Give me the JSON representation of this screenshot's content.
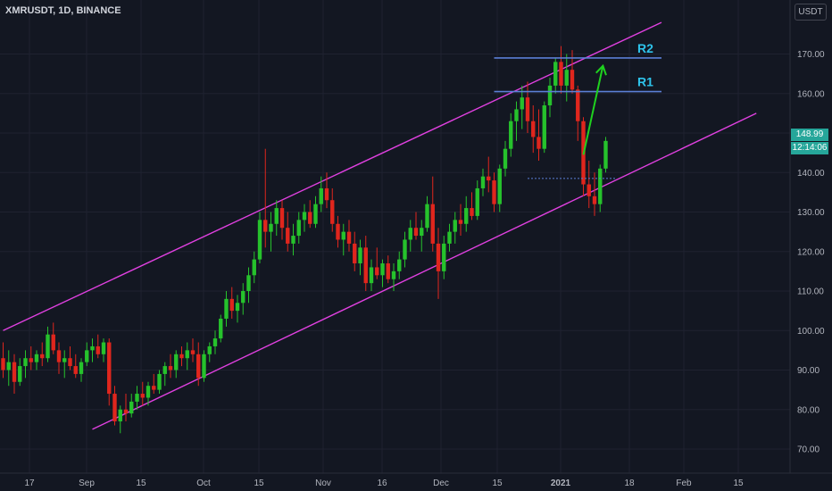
{
  "header": {
    "symbol": "XMRUSDT, 1D, BINANCE",
    "currency_button": "USDT"
  },
  "last_price": "148.99",
  "countdown": "12:14:06",
  "colors": {
    "background": "#131722",
    "grid": "#1f2230",
    "up": "#26c22c",
    "down": "#e0261d",
    "channel": "#e040e0",
    "resistance": "#5b7fd6",
    "annotation_text": "#2ec4ec",
    "arrow": "#1fd11f",
    "axis_text": "#b2b5be",
    "price_tag": "#26a69a"
  },
  "chart_data": {
    "type": "candlestick",
    "y_scale": "linear",
    "ylim": [
      66,
      177
    ],
    "y_ticks": [
      "70.00",
      "80.00",
      "90.00",
      "100.00",
      "110.00",
      "120.00",
      "130.00",
      "140.00",
      "150.00",
      "160.00",
      "170.00"
    ],
    "x_ticks": [
      "17",
      "Sep",
      "15",
      "Oct",
      "15",
      "Nov",
      "16",
      "Dec",
      "15",
      "2021",
      "18",
      "Feb",
      "15"
    ],
    "grid": true,
    "candles": [
      [
        93,
        97,
        88,
        90
      ],
      [
        90,
        95,
        86,
        92
      ],
      [
        92,
        94,
        84,
        87
      ],
      [
        87,
        93,
        86,
        91
      ],
      [
        91,
        95,
        88,
        93
      ],
      [
        93,
        96,
        90,
        92
      ],
      [
        92,
        95,
        90,
        94
      ],
      [
        94,
        97,
        91,
        93
      ],
      [
        93,
        101,
        92,
        99
      ],
      [
        99,
        102,
        94,
        95
      ],
      [
        95,
        97,
        89,
        92
      ],
      [
        92,
        95,
        88,
        93
      ],
      [
        93,
        96,
        90,
        91
      ],
      [
        91,
        94,
        88,
        89
      ],
      [
        89,
        93,
        87,
        92
      ],
      [
        92,
        97,
        91,
        95
      ],
      [
        95,
        98,
        92,
        96
      ],
      [
        96,
        99,
        93,
        94
      ],
      [
        94,
        98,
        92,
        97
      ],
      [
        97,
        98,
        81,
        84
      ],
      [
        84,
        86,
        76,
        77
      ],
      [
        77,
        81,
        74,
        80
      ],
      [
        80,
        84,
        77,
        79
      ],
      [
        79,
        84,
        78,
        82
      ],
      [
        82,
        86,
        80,
        84
      ],
      [
        84,
        87,
        81,
        83
      ],
      [
        83,
        87,
        81,
        86
      ],
      [
        86,
        89,
        84,
        85
      ],
      [
        85,
        90,
        84,
        89
      ],
      [
        89,
        92,
        86,
        91
      ],
      [
        91,
        94,
        88,
        90
      ],
      [
        90,
        95,
        88,
        94
      ],
      [
        94,
        96,
        91,
        93
      ],
      [
        93,
        97,
        90,
        95
      ],
      [
        95,
        98,
        92,
        94
      ],
      [
        94,
        97,
        86,
        88
      ],
      [
        88,
        95,
        87,
        94
      ],
      [
        94,
        97,
        92,
        96
      ],
      [
        96,
        100,
        94,
        98
      ],
      [
        98,
        104,
        97,
        103
      ],
      [
        103,
        110,
        101,
        108
      ],
      [
        108,
        111,
        103,
        105
      ],
      [
        105,
        109,
        102,
        107
      ],
      [
        107,
        112,
        104,
        110
      ],
      [
        110,
        116,
        107,
        114
      ],
      [
        114,
        120,
        112,
        118
      ],
      [
        118,
        130,
        117,
        128
      ],
      [
        128,
        146,
        121,
        125
      ],
      [
        125,
        130,
        120,
        127
      ],
      [
        127,
        133,
        124,
        131
      ],
      [
        131,
        133,
        123,
        126
      ],
      [
        126,
        130,
        120,
        122
      ],
      [
        122,
        127,
        119,
        124
      ],
      [
        124,
        130,
        122,
        128
      ],
      [
        128,
        132,
        125,
        130
      ],
      [
        130,
        133,
        126,
        127
      ],
      [
        127,
        134,
        126,
        132
      ],
      [
        132,
        139,
        130,
        136
      ],
      [
        136,
        140,
        131,
        133
      ],
      [
        133,
        136,
        125,
        127
      ],
      [
        127,
        129,
        121,
        123
      ],
      [
        123,
        127,
        119,
        125
      ],
      [
        125,
        128,
        120,
        122
      ],
      [
        122,
        125,
        115,
        117
      ],
      [
        117,
        123,
        114,
        121
      ],
      [
        121,
        124,
        110,
        112
      ],
      [
        112,
        118,
        110,
        116
      ],
      [
        116,
        121,
        113,
        114
      ],
      [
        114,
        118,
        111,
        117
      ],
      [
        117,
        119,
        112,
        113
      ],
      [
        113,
        117,
        110,
        115
      ],
      [
        115,
        120,
        113,
        118
      ],
      [
        118,
        125,
        116,
        123
      ],
      [
        123,
        128,
        120,
        126
      ],
      [
        126,
        130,
        123,
        124
      ],
      [
        124,
        128,
        120,
        126
      ],
      [
        126,
        134,
        125,
        132
      ],
      [
        132,
        139,
        120,
        122
      ],
      [
        122,
        126,
        108,
        115
      ],
      [
        115,
        124,
        113,
        122
      ],
      [
        122,
        127,
        120,
        125
      ],
      [
        125,
        130,
        122,
        128
      ],
      [
        128,
        132,
        124,
        127
      ],
      [
        127,
        134,
        125,
        131
      ],
      [
        131,
        135,
        128,
        129
      ],
      [
        129,
        138,
        128,
        136
      ],
      [
        136,
        141,
        134,
        139
      ],
      [
        139,
        144,
        135,
        138
      ],
      [
        138,
        140,
        130,
        132
      ],
      [
        132,
        142,
        130,
        141
      ],
      [
        141,
        148,
        139,
        146
      ],
      [
        146,
        155,
        144,
        153
      ],
      [
        153,
        158,
        148,
        156
      ],
      [
        156,
        162,
        151,
        159
      ],
      [
        159,
        163,
        150,
        153
      ],
      [
        153,
        157,
        145,
        149
      ],
      [
        149,
        156,
        143,
        146
      ],
      [
        146,
        158,
        145,
        157
      ],
      [
        157,
        164,
        154,
        162
      ],
      [
        162,
        169,
        160,
        168
      ],
      [
        168,
        172,
        160,
        162
      ],
      [
        162,
        170,
        158,
        166
      ],
      [
        166,
        171,
        160,
        161
      ],
      [
        161,
        162,
        148,
        153
      ],
      [
        153,
        154,
        134,
        137
      ],
      [
        137,
        143,
        131,
        134
      ],
      [
        134,
        140,
        129,
        132
      ],
      [
        132,
        142,
        130,
        141
      ],
      [
        141,
        149,
        140,
        148
      ]
    ],
    "channel": {
      "upper": [
        {
          "x": 0,
          "y": 100
        },
        {
          "x": 118,
          "y": 178
        }
      ],
      "lower": [
        {
          "x": 16,
          "y": 75
        },
        {
          "x": 135,
          "y": 155
        }
      ]
    },
    "resistance_lines": [
      {
        "label": "R1",
        "y": 160.5,
        "x_from": 88,
        "x_to": 118
      },
      {
        "label": "R2",
        "y": 169,
        "x_from": 88,
        "x_to": 118
      }
    ],
    "support_dotted": {
      "y": 138.5,
      "x_from": 94,
      "x_to": 110
    },
    "projection_arrow": [
      {
        "x": 104,
        "y": 144.5
      },
      {
        "x": 107.5,
        "y": 167
      }
    ]
  }
}
